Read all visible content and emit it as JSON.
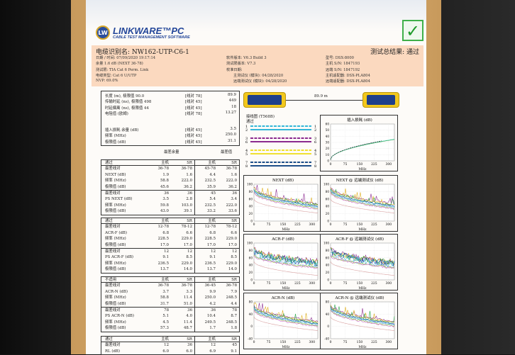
{
  "header": {
    "logo_text": "LW",
    "brand": "LINKWARE™PC",
    "subtitle": "CABLE TEST MANAGEMENT SOFTWARE",
    "result_icon": "check-icon"
  },
  "summary": {
    "cable_id": "电缆识别名: NW162-UTP-C6-1",
    "overall": "测试总结果: 通过",
    "col1": [
      "日期 / 时间: 07/09/2020  19:17:14",
      "余量 1.6 dB (NEXT 36-78)",
      "测试限: TIA Cat 6 Perm. Link",
      "电缆类型: Cat 6 U/UTP",
      "NVP: 69.0%"
    ],
    "col2": [
      "软件版本: V6.3 Build 3",
      "测试限版本: V7.3",
      "校准日期:",
      "主测试仪 (模块): 04/28/2020",
      "远端测试仪 (模块): 04/28/2020"
    ],
    "col3": [
      "型号: DSX-8000",
      "主机 S/N: 1847193",
      "远端 S/N: 1847192",
      "主机适配器: DSX-PLA804",
      "远端适配器: DSX-PLA804"
    ]
  },
  "measurements": [
    {
      "label": "长度 (m), 极限值 90.0",
      "pair": "[线对 78]",
      "value": "89.9"
    },
    {
      "label": "传输时延 (ns), 极限值 498",
      "pair": "[线对 45]",
      "value": "449"
    },
    {
      "label": "时延偏离 (ns), 极限值 44",
      "pair": "[线对 45]",
      "value": "18"
    },
    {
      "label": "电阻值 (欧姆)",
      "pair": "[线对 78]",
      "value": "13.27"
    },
    {
      "label": "插入损耗 余量 (dB)",
      "pair": "[线对 45]",
      "value": "3.5"
    },
    {
      "label": "频率 (MHz)",
      "pair": "[线对 45]",
      "value": "250.0"
    },
    {
      "label": "极限值 (dB)",
      "pair": "[线对 45]",
      "value": "31.1"
    }
  ],
  "margin_headers": {
    "worst_margin": "最差余量",
    "worst_value": "最差值"
  },
  "sections": [
    {
      "header": [
        "通过",
        "主机",
        "SR",
        "主机",
        "SR"
      ],
      "groups": [
        [
          [
            "最差线对",
            "36-78",
            "36-78",
            "45-78",
            "36-78"
          ],
          [
            "NEXT (dB)",
            "1.9",
            "1.6",
            "4.4",
            "1.6"
          ],
          [
            "频率 (MHz)",
            "58.8",
            "222.0",
            "232.5",
            "222.0"
          ],
          [
            "极限值 (dB)",
            "45.6",
            "36.2",
            "35.9",
            "36.2"
          ]
        ],
        [
          [
            "最差线对",
            "36",
            "36",
            "45",
            "36"
          ],
          [
            "PS NEXT (dB)",
            "3.5",
            "2.8",
            "5.4",
            "3.4"
          ],
          [
            "频率 (MHz)",
            "59.8",
            "103.0",
            "232.5",
            "222.0"
          ],
          [
            "极限值 (dB)",
            "43.0",
            "39.1",
            "33.2",
            "33.6"
          ]
        ]
      ]
    },
    {
      "header": [
        "通过",
        "主机",
        "SR",
        "主机",
        "SR"
      ],
      "groups": [
        [
          [
            "最差线对",
            "12-78",
            "78-12",
            "12-78",
            "78-12"
          ],
          [
            "ACR-F (dB)",
            "6.8",
            "6.6",
            "6.8",
            "6.6"
          ],
          [
            "频率 (MHz)",
            "228.5",
            "229.0",
            "228.5",
            "229.0"
          ],
          [
            "极限值 (dB)",
            "17.0",
            "17.0",
            "17.0",
            "17.0"
          ]
        ],
        [
          [
            "最差线对",
            "12",
            "12",
            "12",
            "12"
          ],
          [
            "PS ACR-F (dB)",
            "9.1",
            "8.5",
            "9.1",
            "8.5"
          ],
          [
            "频率 (MHz)",
            "236.5",
            "229.0",
            "236.5",
            "229.0"
          ],
          [
            "极限值 (dB)",
            "13.7",
            "14.0",
            "13.7",
            "14.0"
          ]
        ]
      ]
    },
    {
      "header": [
        "不适用",
        "主机",
        "SR",
        "主机",
        "SR"
      ],
      "groups": [
        [
          [
            "最差线对",
            "36-78",
            "36-78",
            "36-45",
            "36-78"
          ],
          [
            "ACR-N (dB)",
            "3.7",
            "3.3",
            "9.9",
            "7.9"
          ],
          [
            "频率 (MHz)",
            "58.8",
            "11.4",
            "250.0",
            "248.5"
          ],
          [
            "极限值 (dB)",
            "31.7",
            "51.0",
            "4.2",
            "4.4"
          ]
        ],
        [
          [
            "最差线对",
            "78",
            "36",
            "36",
            "78"
          ],
          [
            "PS ACR-N (dB)",
            "5.1",
            "4.0",
            "10.4",
            "8.7"
          ],
          [
            "频率 (MHz)",
            "4.5",
            "11.4",
            "249.5",
            "248.5"
          ],
          [
            "极限值 (dB)",
            "57.3",
            "48.7",
            "1.7",
            "1.8"
          ]
        ]
      ]
    },
    {
      "header": [
        "通过",
        "主机",
        "SR",
        "主机",
        "SR"
      ],
      "groups": [
        [
          [
            "最差线对",
            "12",
            "36",
            "12",
            "45"
          ],
          [
            "RL (dB)",
            "6.0",
            "6.0",
            "6.9",
            "9.1"
          ]
        ]
      ]
    }
  ],
  "link": {
    "length": "89.9 m"
  },
  "wiremap": {
    "title": "接线图 (T568B)",
    "status": "通过",
    "pins": [
      "1",
      "2",
      "3",
      "6",
      "4",
      "5",
      "7",
      "8"
    ],
    "colors": [
      "#35b7d8",
      "#35b7d8",
      "#8b2a8f",
      "#8b2a8f",
      "#f0e030",
      "#f0e030",
      "#1e4f8a",
      "#1e4f8a"
    ]
  },
  "charts": [
    {
      "title": "插入损耗 (dB)",
      "xlabel": "MHz",
      "xticks": [
        "0",
        "75",
        "150",
        "225",
        "300"
      ],
      "yticks": [
        "0",
        "10",
        "20",
        "30",
        "40",
        "50",
        "60"
      ],
      "kind": "il"
    },
    {
      "title": "NEXT (dB)",
      "xlabel": "MHz",
      "xticks": [
        "0",
        "75",
        "150",
        "225",
        "300"
      ],
      "yticks": [
        "0",
        "20",
        "40",
        "60",
        "80",
        "100"
      ],
      "kind": "next"
    },
    {
      "title": "NEXT @ 远端测试仪 (dB)",
      "xlabel": "MHz",
      "xticks": [
        "0",
        "75",
        "150",
        "225",
        "300"
      ],
      "yticks": [
        "0",
        "20",
        "40",
        "60",
        "80",
        "100"
      ],
      "kind": "next"
    },
    {
      "title": "ACR-F (dB)",
      "xlabel": "MHz",
      "xticks": [
        "0",
        "75",
        "150",
        "225",
        "300"
      ],
      "yticks": [
        "0",
        "20",
        "40",
        "60",
        "80",
        "100"
      ],
      "kind": "acrf"
    },
    {
      "title": "ACR-F @ 远端测试仪 (dB)",
      "xlabel": "MHz",
      "xticks": [
        "0",
        "75",
        "150",
        "225",
        "300"
      ],
      "yticks": [
        "0",
        "20",
        "40",
        "60",
        "80",
        "100"
      ],
      "kind": "acrf"
    },
    {
      "title": "ACR-N (dB)",
      "xlabel": "MHz",
      "xticks": [
        "0",
        "75",
        "150",
        "225",
        "300"
      ],
      "yticks": [
        "-40",
        "0",
        "40",
        "80"
      ],
      "kind": "acrn"
    },
    {
      "title": "ACR-N @ 远端测试仪 (dB)",
      "xlabel": "MHz",
      "xticks": [
        "0",
        "75",
        "150",
        "225",
        "300"
      ],
      "yticks": [
        "-40",
        "0",
        "40",
        "80"
      ],
      "kind": "acrn"
    }
  ]
}
